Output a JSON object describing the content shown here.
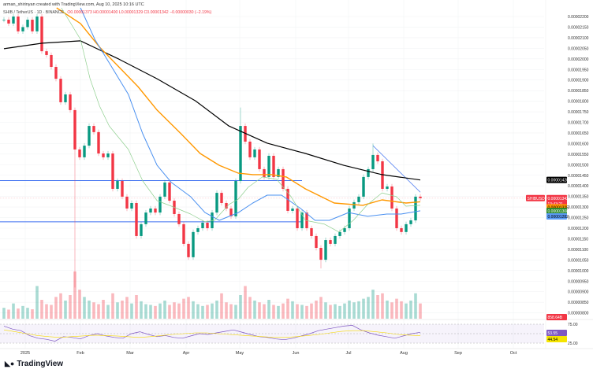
{
  "header": {
    "credit": "arman_shirinyan created with TradingView.com, Aug 10, 2025 10:16 UTC",
    "symbol": "SHIB / TetherUS · 1D · BINANCE",
    "ohlc": "O0.00001373 H0.00001400 L0.00001329 C0.00001342 −0.00000030 (−2.19%)"
  },
  "logo": {
    "text": "TradingView",
    "icon": "tradingview-logo-icon"
  },
  "colors": {
    "up": "#089981",
    "down": "#f23645",
    "ma200": "#000000",
    "ma100": "#ff9800",
    "ma50": "#4a90f0",
    "ma20": "#8fcf8f",
    "rsi": "#7e57c2",
    "level": "#3d6ff0"
  },
  "price_tags": {
    "ma200": "0.00001428",
    "last": "0.00001342",
    "countdown": "13:43:21",
    "symbol_tag": "SHIBUSDT",
    "ma100": "0.00001325",
    "ma20": "0.00001308",
    "ma50": "0.00001282",
    "volume": "858.64B",
    "rsi_upper": "75.00",
    "rsi_lower": "25.00",
    "rsi_value": "53.55",
    "rsi_ma": "44.54"
  },
  "chart_data": {
    "type": "candlestick",
    "title": "SHIB / TetherUS · 1D · BINANCE",
    "price_unit": "1e-8 USDT",
    "ylim": [
      800,
      2230
    ],
    "y_ticks": [
      "0.00002200",
      "0.00002150",
      "0.00002100",
      "0.00002050",
      "0.00002000",
      "0.00001950",
      "0.00001900",
      "0.00001850",
      "0.00001800",
      "0.00001750",
      "0.00001700",
      "0.00001650",
      "0.00001600",
      "0.00001550",
      "0.00001500",
      "0.00001450",
      "0.00001400",
      "0.00001350",
      "0.00001300",
      "0.00001250",
      "0.00001200",
      "0.00001150",
      "0.00001100",
      "0.00001050",
      "0.00001000",
      "0.00000950",
      "0.00000900",
      "0.00000850",
      "0.00000800"
    ],
    "x_ticks": [
      "2025",
      "Feb",
      "Mar",
      "Apr",
      "May",
      "Jun",
      "Jul",
      "Aug",
      "Sep",
      "Oct"
    ],
    "closes": [
      2185,
      2167,
      2200,
      2130,
      2150,
      2185,
      2130,
      2200,
      2036,
      2018,
      1962,
      1906,
      1795,
      1832,
      1758,
      1572,
      1535,
      1590,
      1683,
      1654,
      1553,
      1535,
      1553,
      1386,
      1423,
      1349,
      1293,
      1319,
      1163,
      1219,
      1274,
      1293,
      1274,
      1349,
      1416,
      1330,
      1267,
      1219,
      1126,
      1063,
      1182,
      1200,
      1226,
      1200,
      1274,
      1367,
      1319,
      1293,
      1256,
      1423,
      1683,
      1609,
      1535,
      1572,
      1479,
      1442,
      1542,
      1442,
      1479,
      1386,
      1282,
      1293,
      1200,
      1274,
      1200,
      1163,
      1107,
      1051,
      1144,
      1126,
      1163,
      1182,
      1200,
      1293,
      1323,
      1349,
      1442,
      1479,
      1546,
      1516,
      1386,
      1397,
      1293,
      1200,
      1182,
      1219,
      1237,
      1349,
      1342
    ],
    "wick_extremes": [
      {
        "i": 15,
        "low": 920
      },
      {
        "i": 50,
        "high": 1770
      },
      {
        "i": 78,
        "high": 1600
      },
      {
        "i": 67,
        "low": 1010
      }
    ],
    "volumes_b": [
      300,
      250,
      420,
      280,
      350,
      300,
      260,
      900,
      520,
      400,
      380,
      600,
      700,
      500,
      650,
      1300,
      800,
      600,
      500,
      450,
      400,
      520,
      380,
      700,
      450,
      500,
      600,
      420,
      650,
      480,
      400,
      380,
      350,
      420,
      500,
      380,
      450,
      420,
      550,
      600,
      480,
      400,
      350,
      380,
      420,
      500,
      700,
      450,
      400,
      380,
      650,
      900,
      600,
      500,
      450,
      400,
      520,
      380,
      350,
      420,
      550,
      480,
      400,
      380,
      350,
      420,
      500,
      600,
      450,
      380,
      400,
      350,
      420,
      500,
      450,
      480,
      550,
      600,
      800,
      650,
      700,
      500,
      450,
      550,
      480,
      420,
      500,
      700,
      420
    ],
    "moving_averages": [
      {
        "name": "MA200",
        "points": [
          [
            0,
            2048
          ],
          [
            8,
            2074
          ],
          [
            16,
            2085
          ],
          [
            24,
            1999
          ],
          [
            32,
            1906
          ],
          [
            40,
            1802
          ],
          [
            47,
            1683
          ],
          [
            55,
            1602
          ],
          [
            63,
            1553
          ],
          [
            71,
            1497
          ],
          [
            79,
            1453
          ],
          [
            87,
            1428
          ]
        ]
      },
      {
        "name": "MA100",
        "points": [
          [
            11,
            2241
          ],
          [
            16,
            2167
          ],
          [
            20,
            2055
          ],
          [
            24,
            1962
          ],
          [
            28,
            1869
          ],
          [
            32,
            1758
          ],
          [
            37,
            1646
          ],
          [
            41,
            1553
          ],
          [
            45,
            1497
          ],
          [
            49,
            1460
          ],
          [
            52,
            1453
          ],
          [
            56,
            1453
          ],
          [
            59,
            1442
          ],
          [
            63,
            1386
          ],
          [
            69,
            1319
          ],
          [
            75,
            1308
          ],
          [
            79,
            1334
          ],
          [
            84,
            1319
          ],
          [
            87,
            1325
          ]
        ]
      },
      {
        "name": "MA50",
        "points": [
          [
            16,
            2241
          ],
          [
            19,
            2092
          ],
          [
            22,
            1981
          ],
          [
            26,
            1832
          ],
          [
            29,
            1646
          ],
          [
            32,
            1497
          ],
          [
            35,
            1416
          ],
          [
            39,
            1349
          ],
          [
            42,
            1274
          ],
          [
            45,
            1237
          ],
          [
            49,
            1274
          ],
          [
            52,
            1319
          ],
          [
            55,
            1356
          ],
          [
            58,
            1356
          ],
          [
            62,
            1293
          ],
          [
            65,
            1237
          ],
          [
            68,
            1237
          ],
          [
            72,
            1274
          ],
          [
            76,
            1256
          ],
          [
            80,
            1267
          ],
          [
            83,
            1267
          ],
          [
            87,
            1282
          ]
        ]
      },
      {
        "name": "MA20",
        "points": [
          [
            12,
            2241
          ],
          [
            16,
            2092
          ],
          [
            18,
            1906
          ],
          [
            20,
            1776
          ],
          [
            22,
            1683
          ],
          [
            26,
            1572
          ],
          [
            29,
            1423
          ],
          [
            32,
            1330
          ],
          [
            35,
            1304
          ],
          [
            39,
            1267
          ],
          [
            42,
            1230
          ],
          [
            44,
            1237
          ],
          [
            47,
            1312
          ],
          [
            49,
            1338
          ],
          [
            51,
            1393
          ],
          [
            54,
            1442
          ],
          [
            57,
            1431
          ],
          [
            60,
            1349
          ],
          [
            63,
            1237
          ],
          [
            67,
            1219
          ],
          [
            70,
            1182
          ],
          [
            73,
            1237
          ],
          [
            76,
            1312
          ],
          [
            79,
            1367
          ],
          [
            82,
            1349
          ],
          [
            84,
            1304
          ],
          [
            87,
            1308
          ]
        ]
      }
    ],
    "levels": [
      1425,
      1230
    ],
    "trendline": [
      [
        78,
        1590
      ],
      [
        88,
        1370
      ]
    ],
    "rsi": {
      "ylim": [
        0,
        100
      ],
      "bands": [
        25,
        75
      ],
      "values": [
        70,
        62,
        58,
        45,
        38,
        35,
        30,
        42,
        40,
        36,
        45,
        50,
        44,
        40,
        38,
        50,
        55,
        48,
        42,
        45,
        40,
        38,
        44,
        50,
        48,
        52,
        56,
        60,
        54,
        48,
        42,
        40,
        36,
        34,
        38,
        44,
        50,
        58,
        62,
        66,
        70,
        72,
        60,
        52,
        46,
        42,
        38,
        44,
        50,
        53.55
      ],
      "ma": [
        60,
        55,
        50,
        45,
        42,
        40,
        42,
        44,
        46,
        45,
        44,
        42,
        40,
        42,
        45,
        48,
        50,
        52,
        52,
        50,
        48,
        46,
        44,
        42,
        40,
        40,
        42,
        45,
        48,
        52,
        56,
        58,
        58,
        55,
        52,
        48,
        46,
        44.54
      ]
    }
  }
}
